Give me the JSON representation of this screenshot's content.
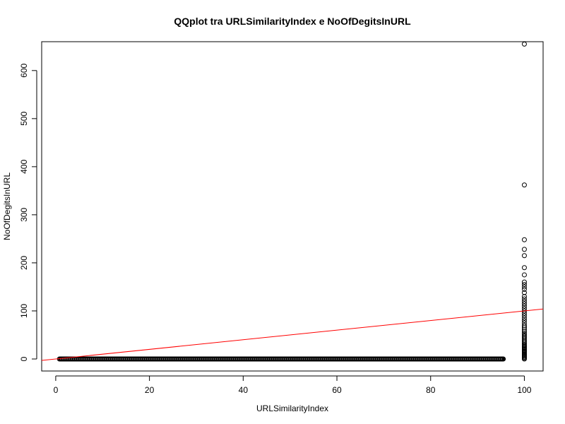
{
  "chart_data": {
    "type": "scatter",
    "title": "QQplot tra URLSimilarityIndex e NoOfDegitsInURL",
    "xlabel": "URLSimilarityIndex",
    "ylabel": "NoOfDegitsInURL",
    "xlim": [
      -3,
      104
    ],
    "ylim": [
      -25,
      660
    ],
    "xticks": [
      0,
      20,
      40,
      60,
      80,
      100
    ],
    "yticks": [
      0,
      100,
      200,
      300,
      400,
      500,
      600
    ],
    "grid": false,
    "point_style": "open circle",
    "point_color": "#000000",
    "line_color": "#ff0000",
    "reference_line": {
      "x": [
        -3,
        104
      ],
      "y": [
        -3,
        104
      ]
    },
    "zero_band": {
      "x_start": 1,
      "x_end": 95.5,
      "y": 0
    },
    "points": [
      {
        "x": 0.8,
        "y": 0
      },
      {
        "x": 100,
        "y": 0
      },
      {
        "x": 100,
        "y": 2
      },
      {
        "x": 100,
        "y": 4
      },
      {
        "x": 100,
        "y": 6
      },
      {
        "x": 100,
        "y": 8
      },
      {
        "x": 100,
        "y": 10
      },
      {
        "x": 100,
        "y": 12
      },
      {
        "x": 100,
        "y": 14
      },
      {
        "x": 100,
        "y": 16
      },
      {
        "x": 100,
        "y": 18
      },
      {
        "x": 100,
        "y": 20
      },
      {
        "x": 100,
        "y": 22
      },
      {
        "x": 100,
        "y": 24
      },
      {
        "x": 100,
        "y": 26
      },
      {
        "x": 100,
        "y": 28
      },
      {
        "x": 100,
        "y": 30
      },
      {
        "x": 100,
        "y": 33
      },
      {
        "x": 100,
        "y": 36
      },
      {
        "x": 100,
        "y": 39
      },
      {
        "x": 100,
        "y": 42
      },
      {
        "x": 100,
        "y": 45
      },
      {
        "x": 100,
        "y": 48
      },
      {
        "x": 100,
        "y": 51
      },
      {
        "x": 100,
        "y": 54
      },
      {
        "x": 100,
        "y": 58
      },
      {
        "x": 100,
        "y": 62
      },
      {
        "x": 100,
        "y": 66
      },
      {
        "x": 100,
        "y": 70
      },
      {
        "x": 100,
        "y": 75
      },
      {
        "x": 100,
        "y": 80
      },
      {
        "x": 100,
        "y": 85
      },
      {
        "x": 100,
        "y": 90
      },
      {
        "x": 100,
        "y": 95
      },
      {
        "x": 100,
        "y": 100
      },
      {
        "x": 100,
        "y": 105
      },
      {
        "x": 100,
        "y": 110
      },
      {
        "x": 100,
        "y": 115
      },
      {
        "x": 100,
        "y": 120
      },
      {
        "x": 100,
        "y": 125
      },
      {
        "x": 100,
        "y": 130
      },
      {
        "x": 100,
        "y": 138
      },
      {
        "x": 100,
        "y": 145
      },
      {
        "x": 100,
        "y": 150
      },
      {
        "x": 100,
        "y": 155
      },
      {
        "x": 100,
        "y": 160
      },
      {
        "x": 100,
        "y": 175
      },
      {
        "x": 100,
        "y": 190
      },
      {
        "x": 100,
        "y": 215
      },
      {
        "x": 100,
        "y": 228
      },
      {
        "x": 100,
        "y": 248
      },
      {
        "x": 100,
        "y": 362
      },
      {
        "x": 100,
        "y": 655
      }
    ]
  }
}
